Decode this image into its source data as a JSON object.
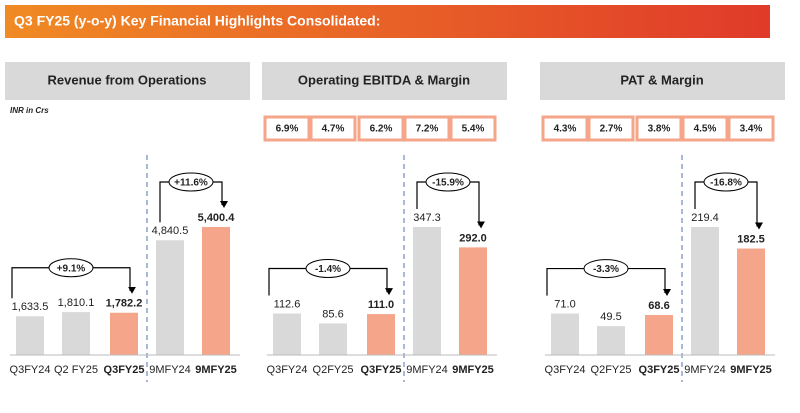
{
  "header": {
    "title": "Q3 FY25 (y-o-y) Key Financial Highlights Consolidated:"
  },
  "note": "INR in Crs",
  "chart_data": [
    {
      "type": "bar",
      "title": "Revenue from Operations",
      "categories": [
        "Q3FY24",
        "Q2 FY25",
        "Q3FY25",
        "9MFY24",
        "9MFY25"
      ],
      "values": [
        1633.5,
        1810.1,
        1782.2,
        4840.5,
        5400.4
      ],
      "value_labels": [
        "1,633.5",
        "1,810.1",
        "1,782.2",
        "4,840.5",
        "5,400.4"
      ],
      "colors": [
        "#d9d9d9",
        "#d9d9d9",
        "#f4a58a",
        "#d9d9d9",
        "#f4a58a"
      ],
      "annotations": [
        "+9.1%",
        "+11.6%"
      ]
    },
    {
      "type": "bar",
      "title": "Operating EBITDA & Margin",
      "categories": [
        "Q3FY24",
        "Q2FY25",
        "Q3FY25",
        "9MFY24",
        "9MFY25"
      ],
      "values": [
        112.6,
        85.6,
        111.0,
        347.3,
        292.0
      ],
      "value_labels": [
        "112.6",
        "85.6",
        "111.0",
        "347.3",
        "292.0"
      ],
      "colors": [
        "#d9d9d9",
        "#d9d9d9",
        "#f4a58a",
        "#d9d9d9",
        "#f4a58a"
      ],
      "margins": [
        6.9,
        4.7,
        6.2,
        7.2,
        5.4
      ],
      "margin_labels": [
        "6.9%",
        "4.7%",
        "6.2%",
        "7.2%",
        "5.4%"
      ],
      "annotations": [
        "-1.4%",
        "-15.9%"
      ]
    },
    {
      "type": "bar",
      "title": "PAT & Margin",
      "categories": [
        "Q3FY24",
        "Q2FY25",
        "Q3FY25",
        "9MFY24",
        "9MFY25"
      ],
      "values": [
        71.0,
        49.5,
        68.6,
        219.4,
        182.5
      ],
      "value_labels": [
        "71.0",
        "49.5",
        "68.6",
        "219.4",
        "182.5"
      ],
      "colors": [
        "#d9d9d9",
        "#d9d9d9",
        "#f4a58a",
        "#d9d9d9",
        "#f4a58a"
      ],
      "margins": [
        4.3,
        2.7,
        3.8,
        4.5,
        3.4
      ],
      "margin_labels": [
        "4.3%",
        "2.7%",
        "3.8%",
        "4.5%",
        "3.4%"
      ],
      "annotations": [
        "-3.3%",
        "-16.8%"
      ]
    }
  ]
}
